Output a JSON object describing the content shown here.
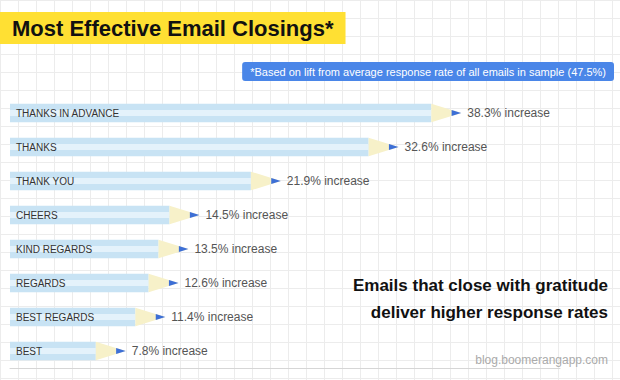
{
  "chart_data": {
    "type": "bar",
    "orientation": "horizontal",
    "title": "Most Effective Email Closings*",
    "subtitle": "*Based on lift from average response rate of all emails in sample (47.5%)",
    "annotations": [
      "Emails that close with gratitude",
      "deliver higher response rates",
      "blog.boomerangapp.com"
    ],
    "categories": [
      "THANKS IN ADVANCE",
      "THANKS",
      "THANK YOU",
      "CHEERS",
      "KIND REGARDS",
      "REGARDS",
      "BEST REGARDS",
      "BEST"
    ],
    "values": [
      38.3,
      32.6,
      21.9,
      14.5,
      13.5,
      12.6,
      11.4,
      7.8
    ],
    "value_labels": [
      "38.3% increase",
      "32.6% increase",
      "21.9% increase",
      "14.5% increase",
      "13.5% increase",
      "12.6% increase",
      "11.4% increase",
      "7.8% increase"
    ],
    "color": "#c8e3f4",
    "xlim": [
      0,
      50
    ],
    "data_labels": true,
    "tick_labels": "y",
    "grid": false
  }
}
